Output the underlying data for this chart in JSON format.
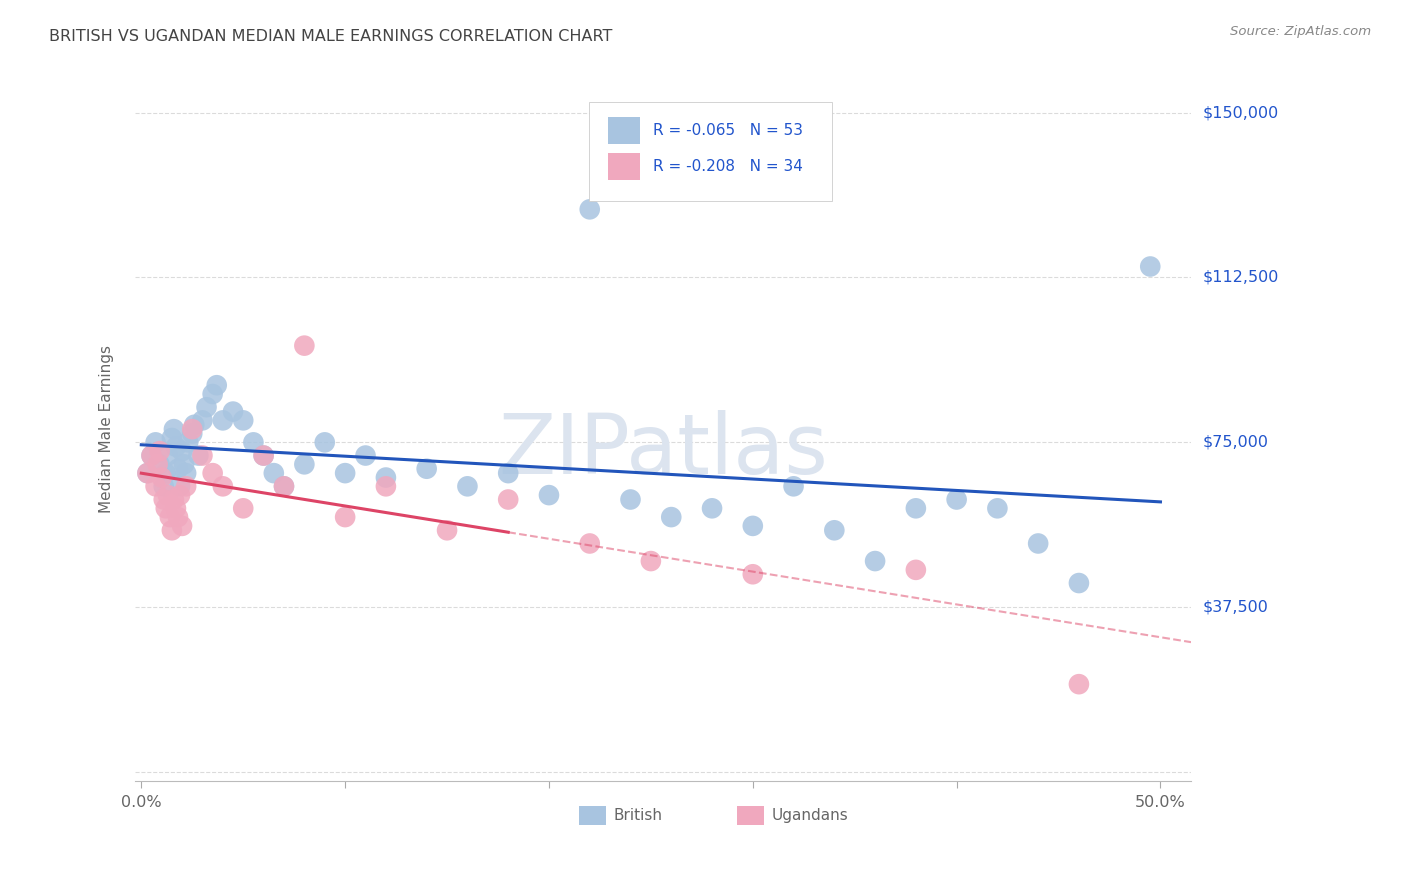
{
  "title": "BRITISH VS UGANDAN MEDIAN MALE EARNINGS CORRELATION CHART",
  "source": "Source: ZipAtlas.com",
  "ylabel": "Median Male Earnings",
  "xlim": [
    -0.003,
    0.515
  ],
  "ylim": [
    -2000,
    158000
  ],
  "ytick_vals": [
    0,
    37500,
    75000,
    112500,
    150000
  ],
  "ytick_labels": [
    "",
    "$37,500",
    "$75,000",
    "$112,500",
    "$150,000"
  ],
  "xtick_vals": [
    0.0,
    0.1,
    0.2,
    0.3,
    0.4,
    0.5
  ],
  "xtick_labels": [
    "0.0%",
    "",
    "",
    "",
    "",
    "50.0%"
  ],
  "british_R": -0.065,
  "british_N": 53,
  "ugandan_R": -0.208,
  "ugandan_N": 34,
  "british_color": "#a8c4e0",
  "ugandan_color": "#f0a8be",
  "british_line_color": "#2255bb",
  "ugandan_line_color": "#dd4466",
  "background_color": "#ffffff",
  "grid_color": "#cccccc",
  "title_color": "#444444",
  "ylabel_color": "#666666",
  "legend_text_color": "#2255cc",
  "right_label_color": "#2255cc",
  "watermark_color": "#dce4ef",
  "source_color": "#888888",
  "bottom_label_color": "#666666",
  "british_x": [
    0.003,
    0.005,
    0.007,
    0.009,
    0.011,
    0.012,
    0.013,
    0.015,
    0.016,
    0.017,
    0.018,
    0.019,
    0.02,
    0.021,
    0.022,
    0.023,
    0.025,
    0.026,
    0.028,
    0.03,
    0.032,
    0.035,
    0.037,
    0.04,
    0.045,
    0.05,
    0.055,
    0.06,
    0.065,
    0.07,
    0.08,
    0.09,
    0.1,
    0.11,
    0.12,
    0.14,
    0.16,
    0.18,
    0.2,
    0.22,
    0.24,
    0.26,
    0.28,
    0.3,
    0.32,
    0.34,
    0.36,
    0.38,
    0.4,
    0.42,
    0.44,
    0.46,
    0.495
  ],
  "british_y": [
    68000,
    72000,
    75000,
    70000,
    65000,
    68000,
    72000,
    76000,
    78000,
    74000,
    69000,
    65000,
    73000,
    70000,
    68000,
    75000,
    77000,
    79000,
    72000,
    80000,
    83000,
    86000,
    88000,
    80000,
    82000,
    80000,
    75000,
    72000,
    68000,
    65000,
    70000,
    75000,
    68000,
    72000,
    67000,
    69000,
    65000,
    68000,
    63000,
    128000,
    62000,
    58000,
    60000,
    56000,
    65000,
    55000,
    48000,
    60000,
    62000,
    60000,
    52000,
    43000,
    115000
  ],
  "ugandan_x": [
    0.003,
    0.005,
    0.007,
    0.008,
    0.009,
    0.01,
    0.011,
    0.012,
    0.013,
    0.014,
    0.015,
    0.016,
    0.017,
    0.018,
    0.019,
    0.02,
    0.022,
    0.025,
    0.03,
    0.035,
    0.04,
    0.05,
    0.06,
    0.07,
    0.08,
    0.1,
    0.12,
    0.15,
    0.18,
    0.22,
    0.25,
    0.3,
    0.38,
    0.46
  ],
  "ugandan_y": [
    68000,
    72000,
    65000,
    70000,
    73000,
    67000,
    62000,
    60000,
    63000,
    58000,
    55000,
    62000,
    60000,
    58000,
    63000,
    56000,
    65000,
    78000,
    72000,
    68000,
    65000,
    60000,
    72000,
    65000,
    97000,
    58000,
    65000,
    55000,
    62000,
    52000,
    48000,
    45000,
    46000,
    20000
  ]
}
